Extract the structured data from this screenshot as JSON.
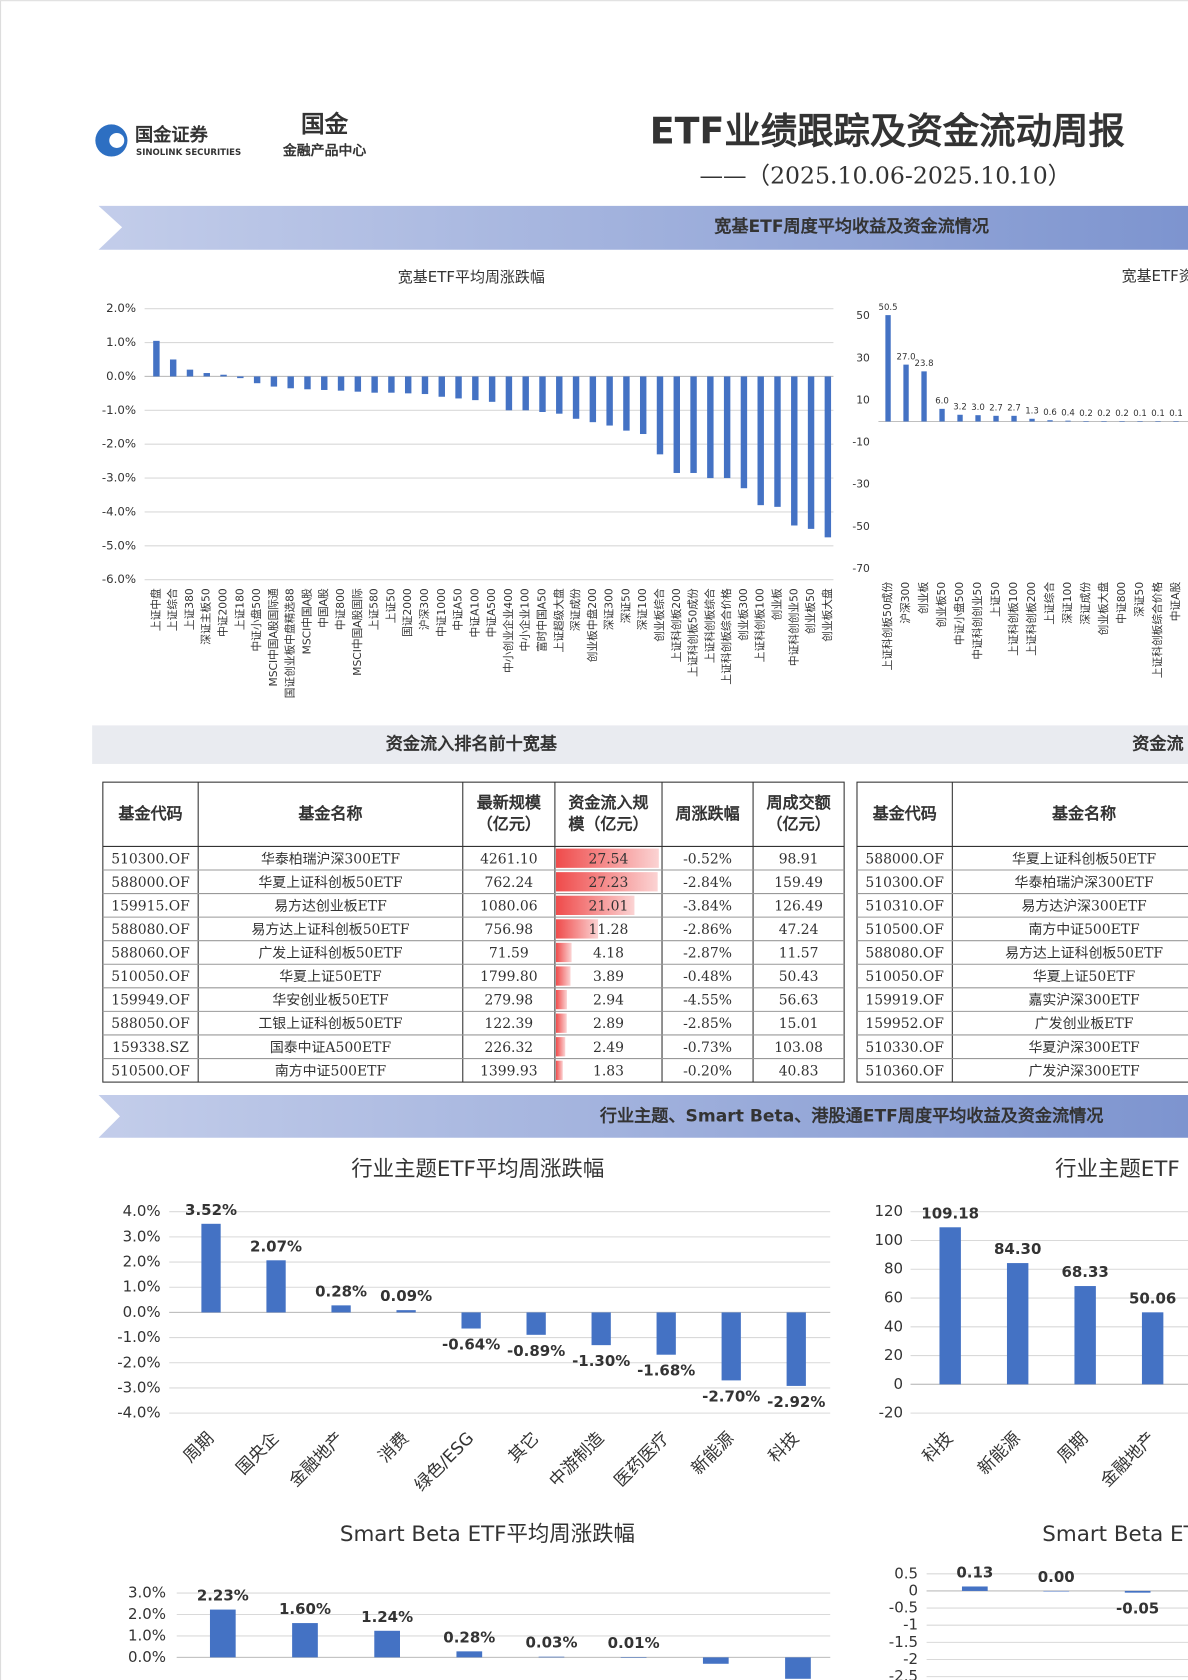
{
  "header": {
    "logo_name": "国金证券",
    "logo_sub": "SINOLINK SECURITIES",
    "center_logo": "国金",
    "center_name": "金融产品中心",
    "title": "ETF业绩跟踪及资金流动周报",
    "subtitle": "——（2025.10.06-2025.10.10）"
  },
  "sections": [
    "宽基ETF周度平均收益及资金流情况",
    "行业主题、Smart Beta、港股通ETF周度平均收益及资金流情况"
  ],
  "chart_data": [
    {
      "type": "bar",
      "title": "宽基ETF平均周涨跌幅",
      "color": "#4472c4",
      "grid": true,
      "categories": [
        "上证中盘",
        "上证综合",
        "上证380",
        "深证主板50",
        "中证2000",
        "上证180",
        "中证小盘500",
        "MSCI中国A股国际通",
        "国证创业板中盘精选88",
        "MSCI中国A股",
        "中国A股",
        "中证800",
        "MSCI中国A股国际",
        "上证580",
        "上证50",
        "国证2000",
        "沪深300",
        "中证1000",
        "中证A50",
        "中证A100",
        "中证A500",
        "中小创业企业400",
        "中小企业100",
        "富时中国A50",
        "上证超级大盘",
        "深证成份",
        "创业板中盘200",
        "深证300",
        "深证50",
        "深证100",
        "创业板综合",
        "上证科创板200",
        "上证科创板50成份",
        "上证科创板综合",
        "上证科创板综合价格",
        "创业板300",
        "上证科创板100",
        "创业板",
        "中证科创创业50",
        "创业板50",
        "创业板大盘"
      ],
      "values": [
        1.05,
        0.5,
        0.2,
        0.1,
        0.05,
        -0.05,
        -0.2,
        -0.3,
        -0.35,
        -0.38,
        -0.4,
        -0.42,
        -0.45,
        -0.48,
        -0.48,
        -0.5,
        -0.52,
        -0.6,
        -0.65,
        -0.7,
        -0.75,
        -1.0,
        -1.0,
        -1.05,
        -1.1,
        -1.25,
        -1.35,
        -1.45,
        -1.6,
        -1.7,
        -2.3,
        -2.85,
        -2.85,
        -3.0,
        -3.0,
        -3.3,
        -3.8,
        -3.85,
        -4.4,
        -4.5,
        -4.75
      ],
      "ylim": [
        -6,
        2
      ],
      "yticks": [
        {
          "value": 2,
          "label": "2.0%"
        },
        {
          "value": 1,
          "label": "1.0%"
        },
        {
          "value": 0,
          "label": "0.0%"
        },
        {
          "value": -1,
          "label": "-1.0%"
        },
        {
          "value": -2,
          "label": "-2.0%"
        },
        {
          "value": -3,
          "label": "-3.0%"
        },
        {
          "value": -4,
          "label": "-4.0%"
        },
        {
          "value": -5,
          "label": "-5.0%"
        },
        {
          "value": -6,
          "label": "-6.0%"
        }
      ]
    },
    {
      "type": "bar",
      "title": "宽基ETF资",
      "color": "#4472c4",
      "grid": false,
      "categories": [
        "上证科创板50成份",
        "沪深300",
        "创业板",
        "创业板50",
        "中证小盘500",
        "中证科创创业50",
        "上证50",
        "上证科创板100",
        "上证科创板200",
        "上证综合",
        "深证100",
        "深证成份",
        "创业板大盘",
        "中证800",
        "深证50",
        "上证科创板综合价格",
        "中证A股"
      ],
      "values": [
        50.5,
        27.0,
        23.8,
        6.0,
        3.2,
        3.0,
        2.7,
        2.7,
        1.3,
        0.6,
        0.4,
        0.2,
        0.2,
        0.2,
        0.1,
        0.1,
        0.1
      ],
      "value_labels": [
        "50.5",
        "27.0",
        "23.8",
        "6.0",
        "3.2",
        "3.0",
        "2.7",
        "2.7",
        "1.3",
        "0.6",
        "0.4",
        "0.2",
        "0.2",
        "0.2",
        "0.1",
        "0.1",
        "0.1"
      ],
      "ylim": [
        -70,
        50
      ],
      "yticks": [
        50,
        30,
        10,
        -10,
        -30,
        -50,
        -70
      ]
    },
    {
      "type": "bar",
      "title": "行业主题ETF平均周涨跌幅",
      "color": "#4472c4",
      "grid": true,
      "categories": [
        "周期",
        "国央企",
        "金融地产",
        "消费",
        "绿色/ESG",
        "其它",
        "中游制造",
        "医药医疗",
        "新能源",
        "科技"
      ],
      "values": [
        3.52,
        2.07,
        0.28,
        0.09,
        -0.64,
        -0.89,
        -1.3,
        -1.68,
        -2.7,
        -2.92
      ],
      "value_labels": [
        "3.52%",
        "2.07%",
        "0.28%",
        "0.09%",
        "-0.64%",
        "-0.89%",
        "-1.30%",
        "-1.68%",
        "-2.70%",
        "-2.92%"
      ],
      "ylim": [
        -4,
        4
      ],
      "yticks": [
        {
          "value": 4,
          "label": "4.0%"
        },
        {
          "value": 3,
          "label": "3.0%"
        },
        {
          "value": 2,
          "label": "2.0%"
        },
        {
          "value": 1,
          "label": "1.0%"
        },
        {
          "value": 0,
          "label": "0.0%"
        },
        {
          "value": -1,
          "label": "-1.0%"
        },
        {
          "value": -2,
          "label": "-2.0%"
        },
        {
          "value": -3,
          "label": "-3.0%"
        },
        {
          "value": -4,
          "label": "-4.0%"
        }
      ]
    },
    {
      "type": "bar",
      "title": "行业主题ETF",
      "color": "#4472c4",
      "grid": true,
      "categories": [
        "科技",
        "新能源",
        "周期",
        "金融地产"
      ],
      "values": [
        109.18,
        84.3,
        68.33,
        50.06
      ],
      "value_labels": [
        "109.18",
        "84.30",
        "68.33",
        "50.06"
      ],
      "ylim": [
        -20,
        120
      ],
      "yticks": [
        120,
        100,
        80,
        60,
        40,
        20,
        0,
        -20
      ]
    },
    {
      "type": "bar",
      "title": "Smart Beta ETF平均周涨跌幅",
      "color": "#4472c4",
      "grid": true,
      "categories": [
        null,
        null,
        null,
        null,
        null,
        null,
        null,
        null
      ],
      "values": [
        2.23,
        1.6,
        1.24,
        0.28,
        0.03,
        0.01,
        -0.3,
        -1.0
      ],
      "value_labels": [
        "2.23%",
        "1.60%",
        "1.24%",
        "0.28%",
        "0.03%",
        "0.01%",
        null,
        null
      ],
      "ylim": [
        -1,
        3
      ],
      "yticks": [
        {
          "value": 3,
          "label": "3.0%"
        },
        {
          "value": 2,
          "label": "2.0%"
        },
        {
          "value": 1,
          "label": "1.0%"
        },
        {
          "value": 0,
          "label": "0.0%"
        }
      ]
    },
    {
      "type": "bar",
      "title": "Smart Beta ETF",
      "color": "#4472c4",
      "grid": true,
      "categories": [
        null,
        null,
        null
      ],
      "values": [
        0.13,
        0.0,
        -0.05
      ],
      "value_labels": [
        "0.13",
        "0.00",
        "-0.05"
      ],
      "ylim": [
        -2.5,
        0.5
      ],
      "yticks": [
        0.5,
        0,
        -0.5,
        -1,
        -1.5,
        -2,
        -2.5
      ]
    }
  ],
  "tables": [
    {
      "title": "资金流入排名前十宽基",
      "columns": [
        [
          "基金代码"
        ],
        [
          "基金名称"
        ],
        [
          "最新规模",
          "（亿元）"
        ],
        [
          "资金流入规",
          "模（亿元）"
        ],
        [
          "周涨跌幅"
        ],
        [
          "周成交额",
          "（亿元）"
        ]
      ],
      "rows": [
        [
          "510300.OF",
          "华泰柏瑞沪深300ETF",
          "4261.10",
          "27.54",
          "-0.52%",
          "98.91"
        ],
        [
          "588000.OF",
          "华夏上证科创板50ETF",
          "762.24",
          "27.23",
          "-2.84%",
          "159.49"
        ],
        [
          "159915.OF",
          "易方达创业板ETF",
          "1080.06",
          "21.01",
          "-3.84%",
          "126.49"
        ],
        [
          "588080.OF",
          "易方达上证科创板50ETF",
          "756.98",
          "11.28",
          "-2.86%",
          "47.24"
        ],
        [
          "588060.OF",
          "广发上证科创板50ETF",
          "71.59",
          "4.18",
          "-2.87%",
          "11.57"
        ],
        [
          "510050.OF",
          "华夏上证50ETF",
          "1799.80",
          "3.89",
          "-0.48%",
          "50.43"
        ],
        [
          "159949.OF",
          "华安创业板50ETF",
          "279.98",
          "2.94",
          "-4.55%",
          "56.63"
        ],
        [
          "588050.OF",
          "工银上证科创板50ETF",
          "122.39",
          "2.89",
          "-2.85%",
          "15.01"
        ],
        [
          "159338.SZ",
          "国泰中证A500ETF",
          "226.32",
          "2.49",
          "-0.73%",
          "103.08"
        ],
        [
          "510500.OF",
          "南方中证500ETF",
          "1399.93",
          "1.83",
          "-0.20%",
          "40.83"
        ]
      ]
    },
    {
      "title": "资金流",
      "columns": [
        [
          "基金代码"
        ],
        [
          "基金名称"
        ]
      ],
      "rows": [
        [
          "588000.OF",
          "华夏上证科创板50ETF"
        ],
        [
          "510300.OF",
          "华泰柏瑞沪深300ETF"
        ],
        [
          "510310.OF",
          "易方达沪深300ETF"
        ],
        [
          "510500.OF",
          "南方中证500ETF"
        ],
        [
          "588080.OF",
          "易方达上证科创板50ETF"
        ],
        [
          "510050.OF",
          "华夏上证50ETF"
        ],
        [
          "159919.OF",
          "嘉实沪深300ETF"
        ],
        [
          "159952.OF",
          "广发创业板ETF"
        ],
        [
          "510330.OF",
          "华夏沪深300ETF"
        ],
        [
          "510360.OF",
          "广发沪深300ETF"
        ]
      ]
    }
  ]
}
